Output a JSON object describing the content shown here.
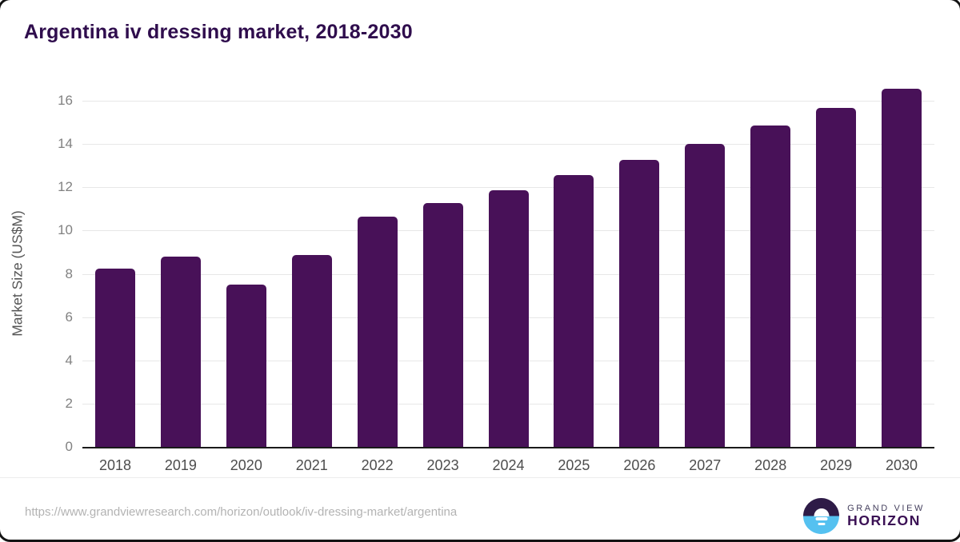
{
  "title": "Argentina iv dressing market, 2018-2030",
  "chart_data": {
    "type": "bar",
    "title": "Argentina iv dressing market, 2018-2030",
    "categories": [
      "2018",
      "2019",
      "2020",
      "2021",
      "2022",
      "2023",
      "2024",
      "2025",
      "2026",
      "2027",
      "2028",
      "2029",
      "2030"
    ],
    "values": [
      8.25,
      8.8,
      7.5,
      8.85,
      10.65,
      11.27,
      11.85,
      12.55,
      13.28,
      14.0,
      14.85,
      15.65,
      16.55
    ],
    "xlabel": "",
    "ylabel": "Market Size (US$M)",
    "ylim": [
      0,
      16
    ],
    "ytick_step": 2,
    "grid": "horizontal",
    "legend": "none",
    "bar_color": "#481158"
  },
  "footer": {
    "source_url": "https://www.grandviewresearch.com/horizon/outlook/iv-dressing-market/argentina",
    "logo": {
      "line1": "GRAND VIEW",
      "line2": "HORIZON"
    }
  },
  "colors": {
    "title": "#2f0d4d",
    "bar": "#481158",
    "gridline": "#e7e7e7",
    "axis_line": "#1a1a1a",
    "y_tick": "#818181",
    "x_tick": "#4d4d4d",
    "url_text": "#b3b3b3",
    "logo_navy": "#2e1b47",
    "logo_blue": "#55c1f0"
  }
}
